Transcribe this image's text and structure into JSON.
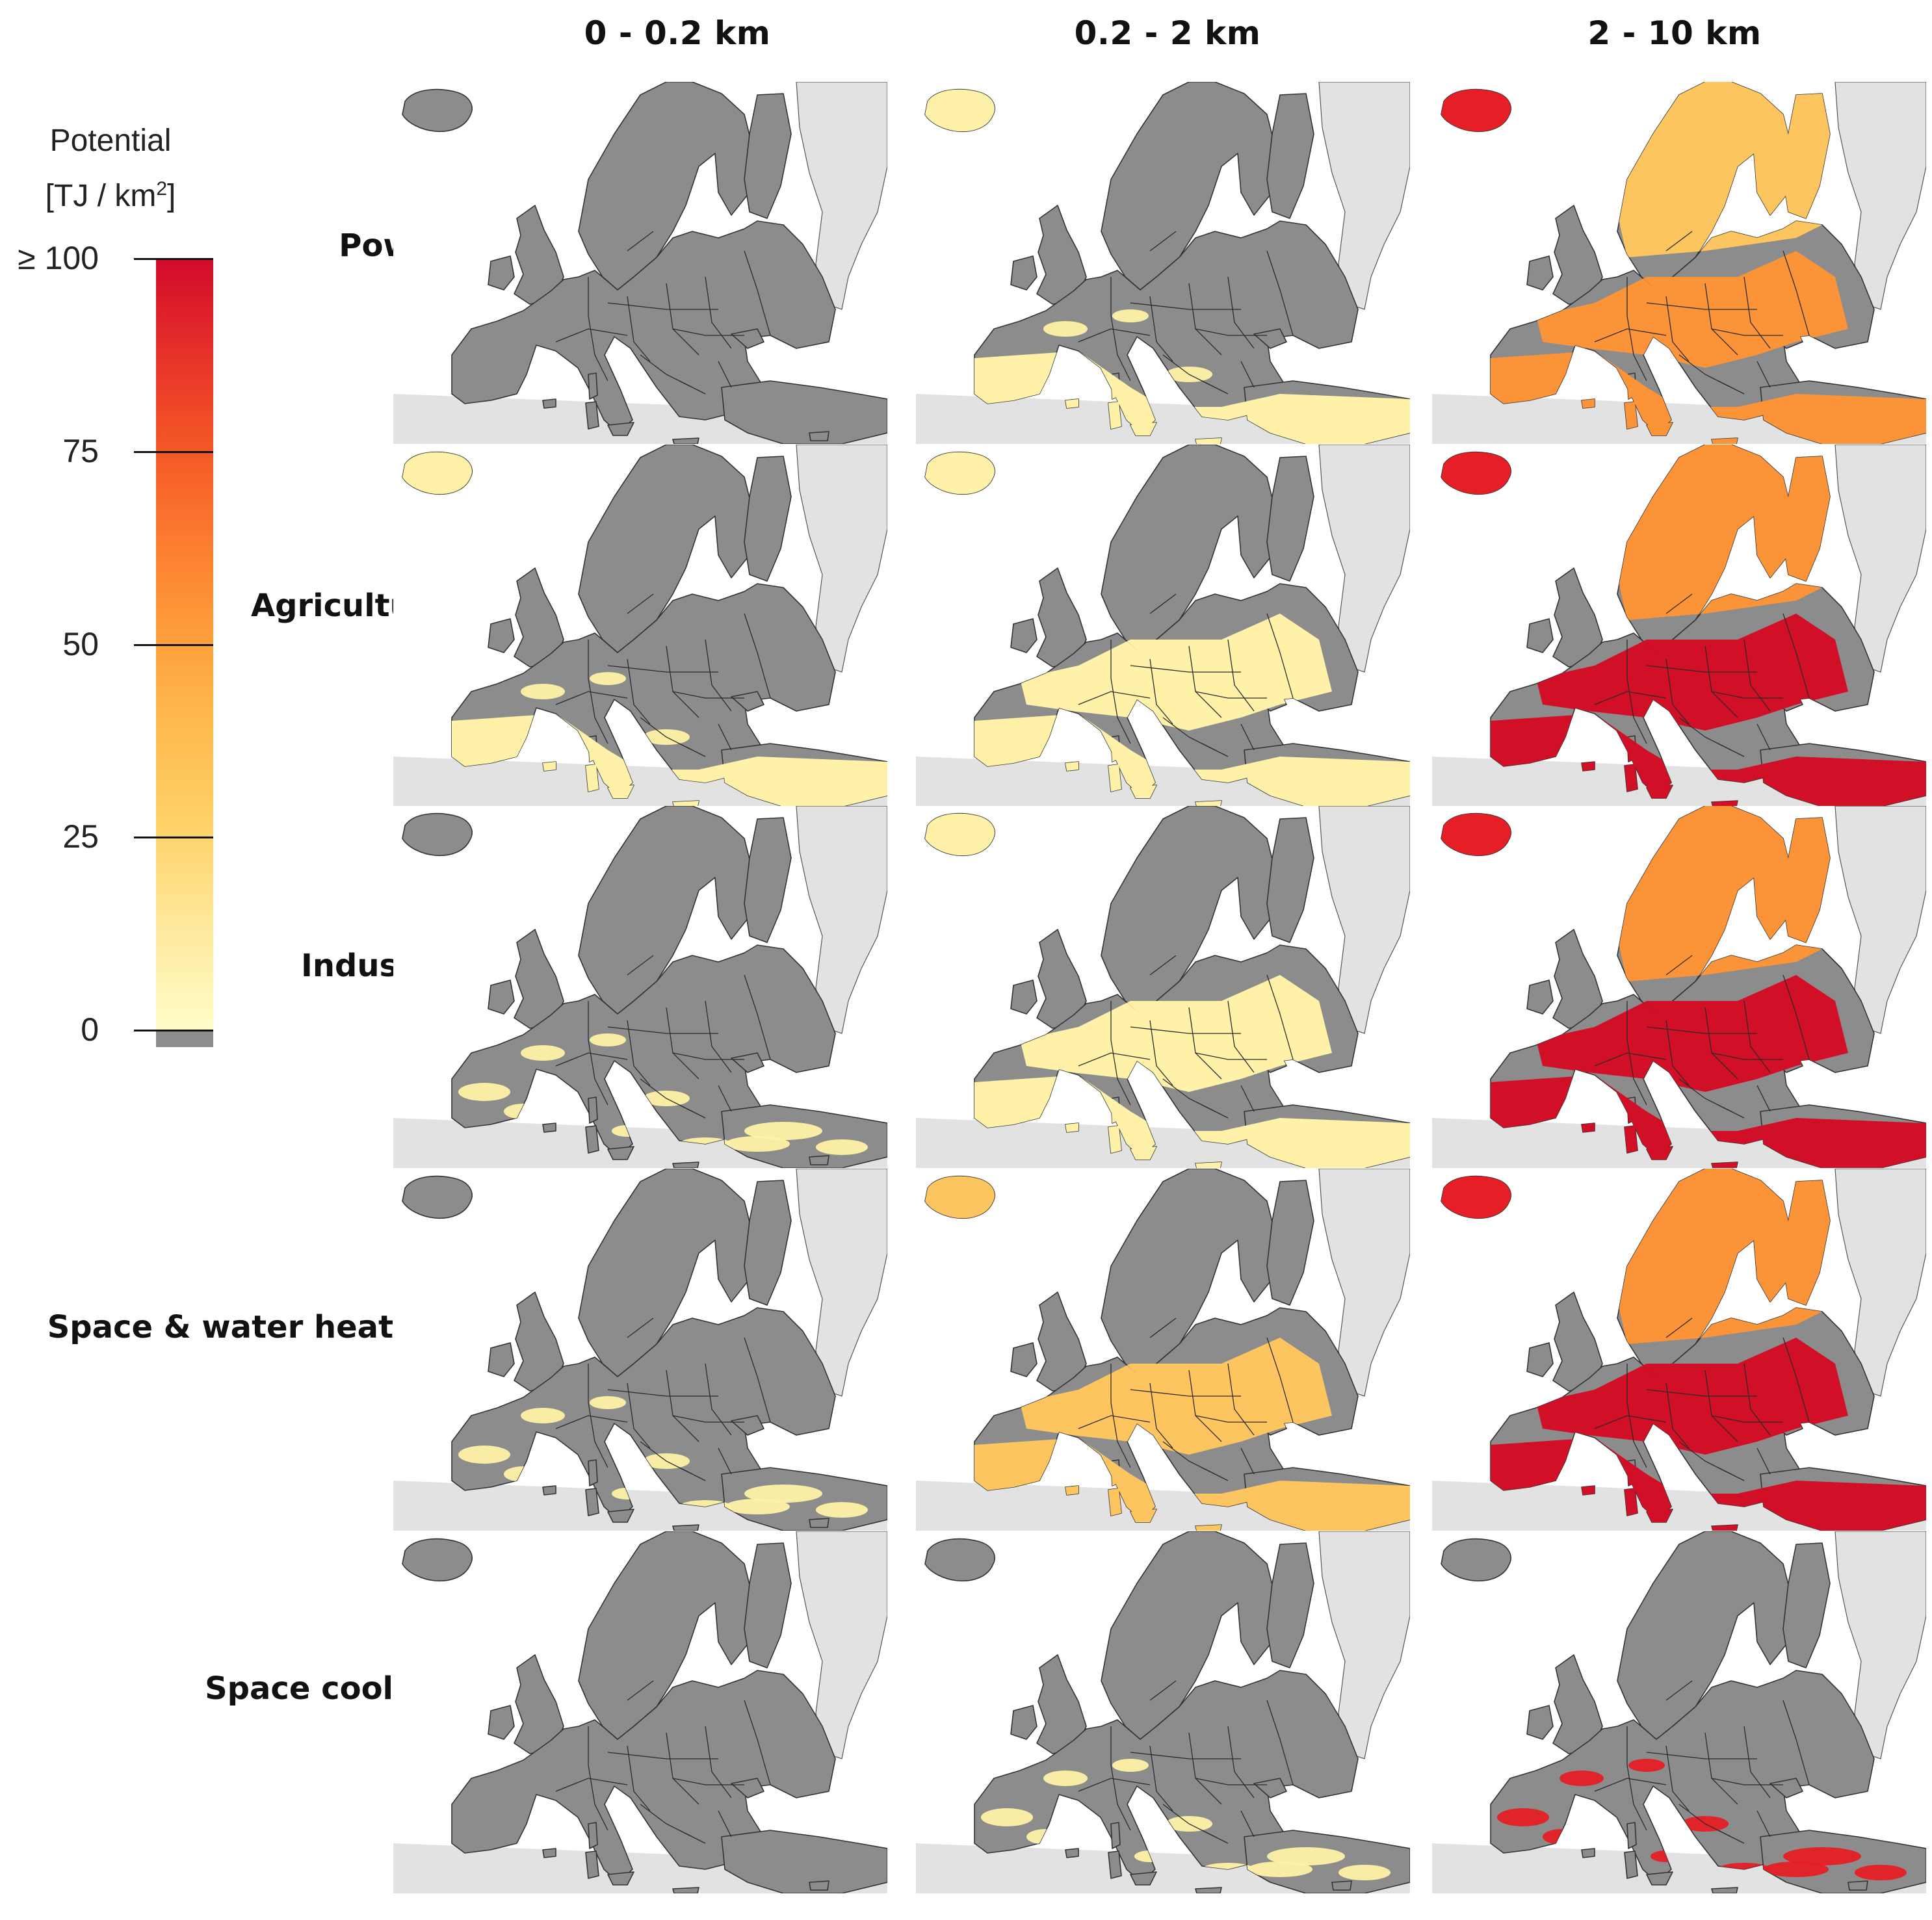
{
  "column_headers": [
    "0 - 0.2 km",
    "0.2 - 2 km",
    "2 - 10 km"
  ],
  "row_labels": [
    "Power",
    "Agriculture",
    "Industry",
    "Space & water heating",
    "Space cooling"
  ],
  "legend": {
    "title_line1": "Potential",
    "title_line2_prefix": "[TJ / km",
    "title_line2_sup": "2",
    "title_line2_suffix": "]",
    "ticks": [
      "≥ 100",
      "75",
      "50",
      "25",
      "0"
    ],
    "tick_values": [
      100,
      75,
      50,
      25,
      0
    ],
    "color_scale": [
      "#fffdc8",
      "#fee89a",
      "#fed36a",
      "#feb94c",
      "#fd9c3a",
      "#fc7a2f",
      "#f35626",
      "#e6302a",
      "#d10b2a"
    ],
    "no_potential_color": "#8c8c8c"
  },
  "map_colors": {
    "land_no_potential": "#8c8c8c",
    "outside_land": "#e2e2e2",
    "sea": "#ffffff",
    "pale_yellow": "#fff2a8",
    "light_orange": "#fdc560",
    "orange": "#fb9338",
    "red": "#e51f25",
    "dark_red": "#d10f26"
  },
  "panels": [
    {
      "row": "Power",
      "column": "0 - 0.2 km",
      "iceland": "pale_spots",
      "north": "none",
      "central": "none",
      "south": "none"
    },
    {
      "row": "Power",
      "column": "0.2 - 2 km",
      "iceland": "pale_yellow",
      "north": "none",
      "central": "pale_spots",
      "south": "pale_yellow"
    },
    {
      "row": "Power",
      "column": "2 - 10 km",
      "iceland": "red",
      "north": "light_orange",
      "central": "orange",
      "south": "orange"
    },
    {
      "row": "Agriculture",
      "column": "0 - 0.2 km",
      "iceland": "pale_yellow",
      "north": "none",
      "central": "pale_spots",
      "south": "pale_yellow"
    },
    {
      "row": "Agriculture",
      "column": "0.2 - 2 km",
      "iceland": "pale_yellow",
      "north": "none",
      "central": "pale_yellow",
      "south": "pale_yellow"
    },
    {
      "row": "Agriculture",
      "column": "2 - 10 km",
      "iceland": "red",
      "north": "orange",
      "central": "dark_red",
      "south": "dark_red"
    },
    {
      "row": "Industry",
      "column": "0 - 0.2 km",
      "iceland": "pale_spots",
      "north": "none",
      "central": "none",
      "south": "pale_spots"
    },
    {
      "row": "Industry",
      "column": "0.2 - 2 km",
      "iceland": "pale_yellow",
      "north": "none",
      "central": "pale_yellow",
      "south": "pale_yellow"
    },
    {
      "row": "Industry",
      "column": "2 - 10 km",
      "iceland": "red",
      "north": "orange",
      "central": "dark_red",
      "south": "dark_red"
    },
    {
      "row": "Space & water heating",
      "column": "0 - 0.2 km",
      "iceland": "pale_spots",
      "north": "none",
      "central": "none",
      "south": "pale_spots"
    },
    {
      "row": "Space & water heating",
      "column": "0.2 - 2 km",
      "iceland": "light_orange",
      "north": "none",
      "central": "light_orange",
      "south": "light_orange"
    },
    {
      "row": "Space & water heating",
      "column": "2 - 10 km",
      "iceland": "red",
      "north": "orange",
      "central": "dark_red",
      "south": "dark_red"
    },
    {
      "row": "Space cooling",
      "column": "0 - 0.2 km",
      "iceland": "none",
      "north": "none",
      "central": "none",
      "south": "none"
    },
    {
      "row": "Space cooling",
      "column": "0.2 - 2 km",
      "iceland": "none",
      "north": "none",
      "central": "none",
      "south": "pale_spots"
    },
    {
      "row": "Space cooling",
      "column": "2 - 10 km",
      "iceland": "none",
      "north": "none",
      "central": "none",
      "south": "red_spots"
    }
  ]
}
